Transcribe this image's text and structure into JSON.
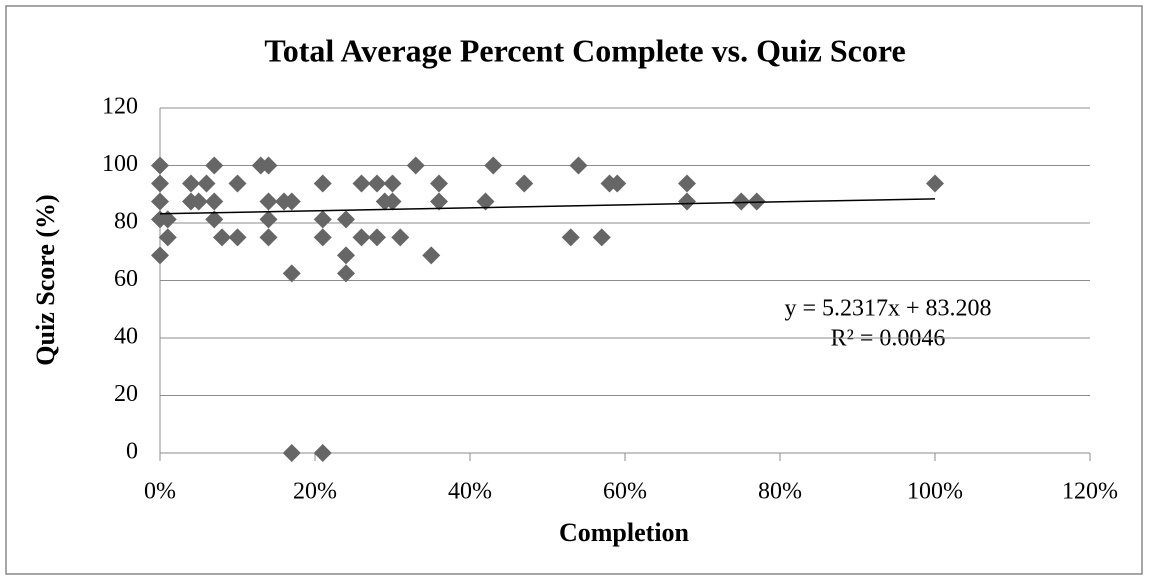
{
  "chart_data": {
    "type": "scatter",
    "title": "Total Average Percent Complete vs. Quiz Score",
    "x_label": "Completion",
    "y_label": "Quiz Score (%)",
    "color": "#666666",
    "grid": true,
    "xlim": [
      0,
      120
    ],
    "xticks": [
      {
        "value": 0,
        "label": "0%"
      },
      {
        "value": 20,
        "label": "20%"
      },
      {
        "value": 40,
        "label": "40%"
      },
      {
        "value": 60,
        "label": "60%"
      },
      {
        "value": 80,
        "label": "80%"
      },
      {
        "value": 100,
        "label": "100%"
      },
      {
        "value": 120,
        "label": "120%"
      }
    ],
    "ylim": [
      0,
      120
    ],
    "yticks": [
      0,
      20,
      40,
      60,
      80,
      100,
      120
    ],
    "series": [
      {
        "name": "Quiz Score",
        "x": [
          0,
          0,
          0,
          0,
          0,
          1,
          1,
          4,
          4,
          5,
          6,
          7,
          7,
          7,
          8,
          10,
          10,
          13,
          14,
          14,
          14,
          14,
          16,
          17,
          17,
          17,
          21,
          21,
          21,
          21,
          24,
          24,
          24,
          26,
          26,
          28,
          28,
          29,
          30,
          30,
          31,
          33,
          35,
          36,
          36,
          42,
          43,
          47,
          53,
          54,
          57,
          58,
          59,
          68,
          68,
          75,
          77,
          100
        ],
        "values": [
          100,
          93.75,
          87.5,
          81.25,
          68.75,
          81.25,
          75,
          93.75,
          87.5,
          87.5,
          93.75,
          100,
          87.5,
          81.25,
          75,
          93.75,
          75,
          100,
          100,
          87.5,
          81.25,
          75,
          87.5,
          87.5,
          62.5,
          0,
          93.75,
          81.25,
          75,
          0,
          81.25,
          68.75,
          62.5,
          93.75,
          75,
          93.75,
          75,
          87.5,
          87.5,
          93.75,
          75,
          100,
          68.75,
          93.75,
          87.5,
          87.5,
          100,
          93.75,
          75,
          100,
          75,
          93.75,
          93.75,
          93.75,
          87.5,
          87.5,
          87.5,
          93.75
        ]
      }
    ],
    "trendline": {
      "color": "#000000",
      "x": [
        0,
        100
      ],
      "values": [
        83.2,
        88.4
      ]
    },
    "annotations": [
      "y = 5.2317x + 83.208",
      "R² = 0.0046"
    ]
  }
}
